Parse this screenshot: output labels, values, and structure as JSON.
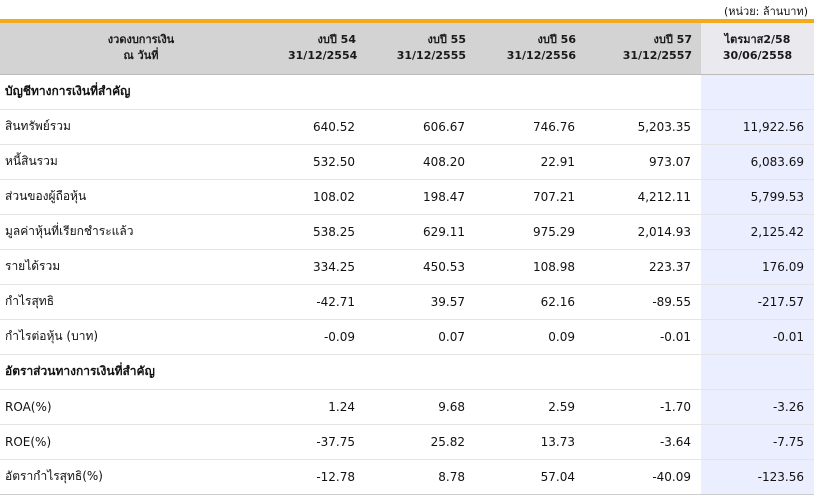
{
  "unit_note": "(หน่วย: ล้านบาท)",
  "header": {
    "label_line1": "งวดงบการเงิน",
    "label_line2": "ณ วันที่",
    "periods": [
      {
        "title": "งบปี 54",
        "date": "31/12/2554"
      },
      {
        "title": "งบปี 55",
        "date": "31/12/2555"
      },
      {
        "title": "งบปี 56",
        "date": "31/12/2556"
      },
      {
        "title": "งบปี 57",
        "date": "31/12/2557"
      },
      {
        "title": "ไตรมาส2/58",
        "date": "30/06/2558"
      }
    ]
  },
  "rows": [
    {
      "label": "บัญชีทางการเงินที่สำคัญ",
      "section": true,
      "values": [
        "",
        "",
        "",
        "",
        ""
      ]
    },
    {
      "label": "สินทรัพย์รวม",
      "values": [
        "640.52",
        "606.67",
        "746.76",
        "5,203.35",
        "11,922.56"
      ]
    },
    {
      "label": "หนี้สินรวม",
      "values": [
        "532.50",
        "408.20",
        "22.91",
        "973.07",
        "6,083.69"
      ]
    },
    {
      "label": "ส่วนของผู้ถือหุ้น",
      "values": [
        "108.02",
        "198.47",
        "707.21",
        "4,212.11",
        "5,799.53"
      ]
    },
    {
      "label": "มูลค่าหุ้นที่เรียกชำระแล้ว",
      "values": [
        "538.25",
        "629.11",
        "975.29",
        "2,014.93",
        "2,125.42"
      ]
    },
    {
      "label": "รายได้รวม",
      "values": [
        "334.25",
        "450.53",
        "108.98",
        "223.37",
        "176.09"
      ]
    },
    {
      "label": "กำไรสุทธิ",
      "values": [
        "-42.71",
        "39.57",
        "62.16",
        "-89.55",
        "-217.57"
      ]
    },
    {
      "label": "กำไรต่อหุ้น (บาท)",
      "values": [
        "-0.09",
        "0.07",
        "0.09",
        "-0.01",
        "-0.01"
      ]
    },
    {
      "label": "อัตราส่วนทางการเงินที่สำคัญ",
      "section": true,
      "values": [
        "",
        "",
        "",
        "",
        ""
      ]
    },
    {
      "label": "ROA(%)",
      "values": [
        "1.24",
        "9.68",
        "2.59",
        "-1.70",
        "-3.26"
      ]
    },
    {
      "label": "ROE(%)",
      "values": [
        "-37.75",
        "25.82",
        "13.73",
        "-3.64",
        "-7.75"
      ]
    },
    {
      "label": "อัตรากำไรสุทธิ(%)",
      "values": [
        "-12.78",
        "8.78",
        "57.04",
        "-40.09",
        "-123.56"
      ]
    }
  ],
  "colors": {
    "header_accent": "#f2ab1a",
    "header_bg": "#d3d3d3",
    "highlight_column": "#ebeeff"
  }
}
